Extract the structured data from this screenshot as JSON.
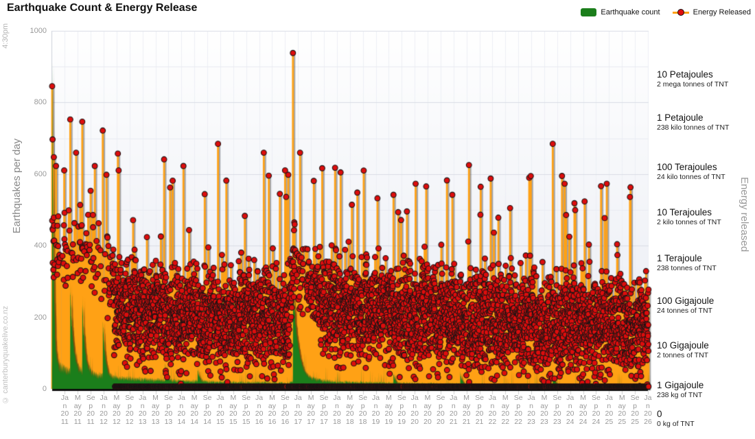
{
  "page": {
    "watermark_time": "4:30pm",
    "watermark_site": "© canterburyquakelive.co.nz"
  },
  "chart_data": {
    "type": "combo-column-stem-scatter",
    "title": "Earthquake Count & Energy Release",
    "legend": [
      {
        "label": "Earthquake count",
        "marker": "bar",
        "color": "#1b7e1b"
      },
      {
        "label": "Energy Released",
        "marker": "line-dot",
        "line_color": "#ffa115",
        "dot_color": "#dd0d0d"
      }
    ],
    "x_axis": {
      "start": "2010-09-01",
      "end": "2026-01-15",
      "tick_labels": [
        "Jan 2011",
        "May 2011",
        "Sep 2011",
        "Jan 2012",
        "May 2012",
        "Sep 2012",
        "Jan 2013",
        "May 2013",
        "Sep 2013",
        "Jan 2014",
        "May 2014",
        "Sep 2014",
        "Jan 2015",
        "May 2015",
        "Sep 2015",
        "Jan 2016",
        "May 2016",
        "Sep 2016",
        "Jan 2017",
        "May 2017",
        "Sep 2017",
        "Jan 2018",
        "May 2018",
        "Sep 2018",
        "Jan 2019",
        "May 2019",
        "Sep 2019",
        "Jan 2020",
        "May 2020",
        "Sep 2020",
        "Jan 2021",
        "May 2021",
        "Sep 2021",
        "Jan 2022",
        "May 2022",
        "Sep 2022",
        "Jan 2023",
        "May 2023",
        "Sep 2023",
        "Jan 2024",
        "May 2024",
        "Sep 2024",
        "Jan 2025",
        "May 2025",
        "Sep 2025",
        "Jan 2026"
      ]
    },
    "y_left": {
      "title": "Earthquakes per day",
      "min": 0,
      "max": 1000,
      "ticks": [
        0,
        200,
        400,
        600,
        800,
        1000
      ],
      "minor_step": 100
    },
    "y_right": {
      "title": "Energy released",
      "tick_labels": [
        {
          "main": "10 Petajoules",
          "sub": "2 mega tonnes of TNT"
        },
        {
          "main": "1 Petajoule",
          "sub": "238 kilo tonnes of TNT"
        },
        {
          "main": "100 Terajoules",
          "sub": "24 kilo tonnes of TNT"
        },
        {
          "main": "10 Terajoules",
          "sub": "2 kilo tonnes of TNT"
        },
        {
          "main": "1 Terajoule",
          "sub": "238 tonnes of TNT"
        },
        {
          "main": "100 Gigajoule",
          "sub": "24 tonnes of TNT"
        },
        {
          "main": "10 Gigajoule",
          "sub": "2 tonnes of TNT"
        },
        {
          "main": "1 Gigajoule",
          "sub": "238 kg of TNT"
        },
        {
          "main": "0",
          "sub": "0 kg of TNT"
        }
      ]
    },
    "series": {
      "earthquake_count": {
        "type": "column",
        "color": "#1b7e1b",
        "baseline": [
          [
            "2010-09-01",
            65
          ],
          [
            "2011-03-01",
            48
          ],
          [
            "2011-09-01",
            40
          ],
          [
            "2012-03-01",
            32
          ],
          [
            "2013-01-01",
            26
          ],
          [
            "2014-01-01",
            22
          ],
          [
            "2015-01-01",
            19
          ],
          [
            "2016-10-01",
            16
          ],
          [
            "2017-01-01",
            28
          ],
          [
            "2017-07-01",
            24
          ],
          [
            "2018-01-01",
            19
          ],
          [
            "2020-01-01",
            15
          ],
          [
            "2022-01-01",
            13
          ],
          [
            "2024-01-01",
            12
          ],
          [
            "2026-02-01",
            10
          ]
        ],
        "spikes": [
          [
            "2010-09-04",
            900,
            0.4
          ],
          [
            "2011-02-22",
            235,
            0.9
          ],
          [
            "2011-06-13",
            195,
            0.8
          ],
          [
            "2011-12-23",
            165,
            0.7
          ],
          [
            "2013-08-01",
            45,
            0.5
          ],
          [
            "2014-06-01",
            38,
            0.5
          ],
          [
            "2016-11-14",
            270,
            1.5
          ],
          [
            "2019-06-15",
            30,
            0.5
          ],
          [
            "2021-03-04",
            32,
            0.5
          ],
          [
            "2023-07-20",
            35,
            0.5
          ]
        ]
      },
      "energy_released": {
        "type": "stem-scatter",
        "stem_color": "#ffa115",
        "dot_color": "#dd0d0d",
        "dot_outline": "#151515",
        "unit": "log10 gigajoules per day",
        "envelope": [
          [
            "2010-09-04",
            3.4,
            0.7,
            0.5
          ],
          [
            "2010-11-01",
            3.2,
            0.8,
            0.25
          ],
          [
            "2011-02-01",
            3.0,
            0.8,
            0.14
          ],
          [
            "2011-06-01",
            3.1,
            0.85,
            0.22
          ],
          [
            "2011-10-01",
            2.9,
            0.85,
            0.13
          ],
          [
            "2012-01-01",
            2.7,
            0.9,
            0.12
          ],
          [
            "2012-03-15",
            2.4,
            0.95,
            0.3
          ],
          [
            "2012-04-15",
            1.9,
            1.0,
            0.96
          ],
          [
            "2013-01-01",
            1.7,
            1.0,
            0.97
          ],
          [
            "2015-01-01",
            1.55,
            1.0,
            0.97
          ],
          [
            "2016-10-01",
            1.5,
            1.0,
            0.97
          ],
          [
            "2016-11-14",
            2.9,
            0.8,
            0.6
          ],
          [
            "2016-12-15",
            2.6,
            0.7,
            0.28
          ],
          [
            "2017-05-01",
            2.2,
            0.8,
            0.4
          ],
          [
            "2017-08-01",
            1.95,
            0.95,
            0.9
          ],
          [
            "2018-01-01",
            1.8,
            1.0,
            0.97
          ],
          [
            "2020-01-01",
            1.6,
            1.0,
            0.97
          ],
          [
            "2022-01-01",
            1.5,
            1.0,
            0.97
          ],
          [
            "2024-01-01",
            1.42,
            1.0,
            0.97
          ],
          [
            "2026-02-01",
            1.35,
            1.0,
            0.97
          ]
        ],
        "peaks": [
          [
            "2010-09-04",
            6.8
          ],
          [
            "2010-09-08",
            5.6
          ],
          [
            "2010-09-20",
            5.2
          ],
          [
            "2010-10-10",
            5.0
          ],
          [
            "2010-12-26",
            4.9
          ],
          [
            "2011-02-22",
            6.05
          ],
          [
            "2011-04-16",
            5.3
          ],
          [
            "2011-06-13",
            6.0
          ],
          [
            "2011-10-09",
            5.0
          ],
          [
            "2011-12-23",
            5.8
          ],
          [
            "2012-05-20",
            4.9
          ],
          [
            "2013-07-21",
            5.15
          ],
          [
            "2014-01-20",
            5.0
          ],
          [
            "2014-12-10",
            5.5
          ],
          [
            "2016-02-14",
            5.3
          ],
          [
            "2016-09-01",
            4.9
          ],
          [
            "2016-11-14",
            7.55
          ],
          [
            "2017-01-20",
            5.3
          ],
          [
            "2017-08-15",
            4.95
          ],
          [
            "2018-07-10",
            4.4
          ],
          [
            "2019-06-15",
            4.35
          ],
          [
            "2020-01-10",
            4.6
          ],
          [
            "2020-12-20",
            4.35
          ],
          [
            "2021-09-10",
            3.9
          ],
          [
            "2022-06-15",
            4.05
          ],
          [
            "2023-07-20",
            5.5
          ],
          [
            "2023-11-10",
            4.6
          ],
          [
            "2024-05-15",
            4.2
          ],
          [
            "2024-12-10",
            4.6
          ],
          [
            "2025-07-15",
            4.3
          ]
        ],
        "zero_day_fraction": 0.07,
        "baseline_row_fraction": 0.55
      }
    }
  }
}
